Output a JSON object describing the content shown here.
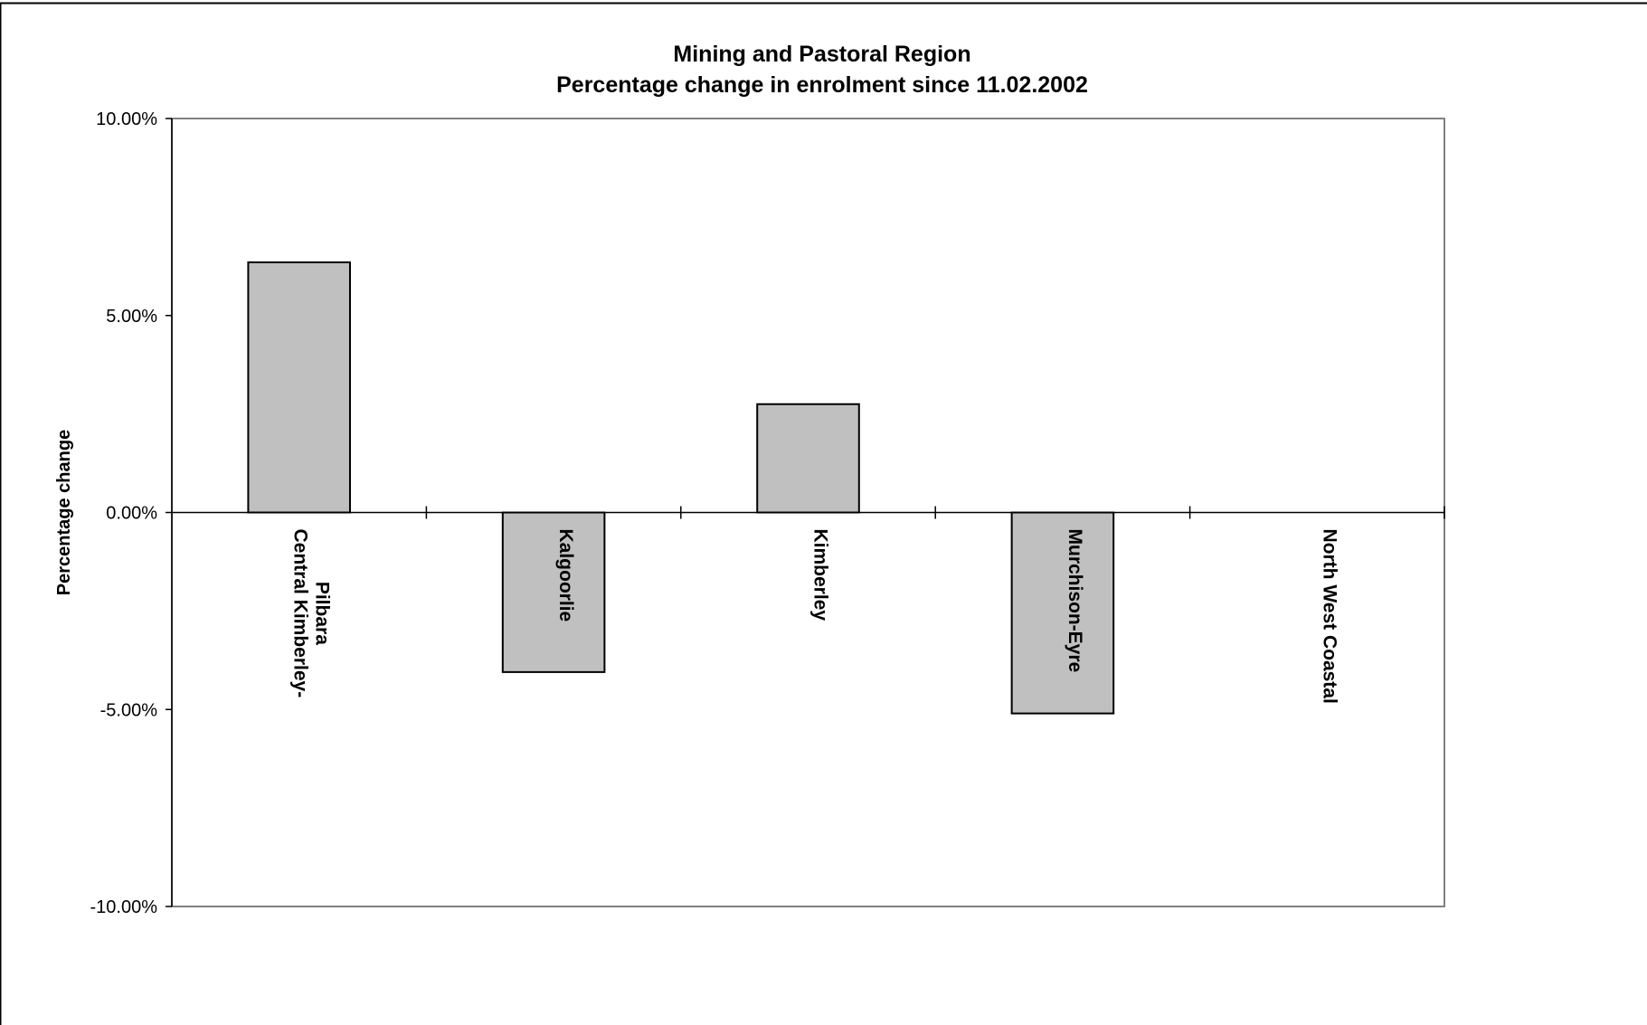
{
  "chart_data": {
    "type": "bar",
    "title": [
      "Mining and Pastoral Region",
      "Percentage change in enrolment since 11.02.2002"
    ],
    "xlabel": "",
    "ylabel": "Percentage change",
    "ylim": [
      -10,
      10
    ],
    "yticks": [
      10,
      5,
      0,
      -5,
      -10
    ],
    "ytick_labels": [
      "10.00%",
      "5.00%",
      "0.00%",
      "-5.00%",
      "-10.00%"
    ],
    "categories": [
      [
        "Central Kimberley-",
        "Pilbara"
      ],
      [
        "Kalgoorlie"
      ],
      [
        "Kimberley"
      ],
      [
        "Murchison-Eyre"
      ],
      [
        "North West Coastal"
      ]
    ],
    "values": [
      6.35,
      -4.05,
      2.75,
      -5.1,
      0
    ],
    "grid": false,
    "legend": "none",
    "colors": {
      "bar_fill": "#c0c0c0",
      "bar_stroke": "#000000",
      "plot_border": "#808080",
      "axis": "#000000"
    }
  }
}
